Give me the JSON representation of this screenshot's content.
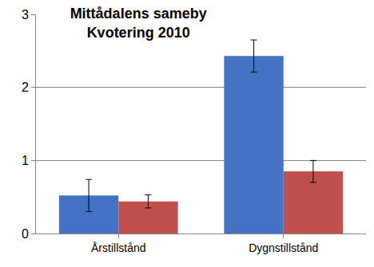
{
  "chart_data": {
    "type": "bar",
    "title": "Mittådalens sameby\nKvotering 2010",
    "categories": [
      "Årstillstånd",
      "Dygnstillstånd"
    ],
    "series": [
      {
        "color": "#4472c4",
        "values": [
          0.52,
          2.43
        ],
        "errors": [
          0.22,
          0.22
        ]
      },
      {
        "color": "#c0504d",
        "values": [
          0.44,
          0.85
        ],
        "errors": [
          0.09,
          0.15
        ]
      }
    ],
    "ylim": [
      0,
      3
    ],
    "yticks": [
      0,
      1,
      2,
      3
    ],
    "grid": true
  }
}
